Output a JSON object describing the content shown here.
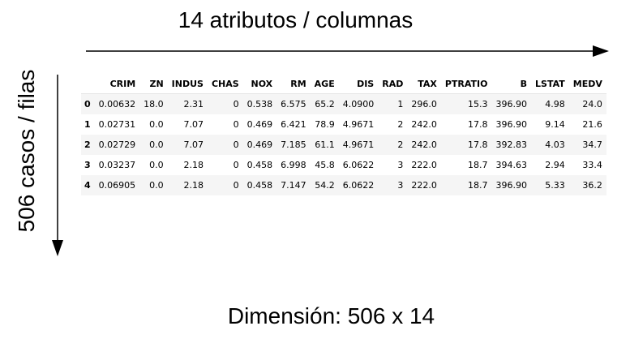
{
  "labels": {
    "columns": "14 atributos / columnas",
    "rows": "506 casos / filas",
    "dimension": "Dimensión: 506 x 14"
  },
  "table": {
    "columns": [
      "CRIM",
      "ZN",
      "INDUS",
      "CHAS",
      "NOX",
      "RM",
      "AGE",
      "DIS",
      "RAD",
      "TAX",
      "PTRATIO",
      "B",
      "LSTAT",
      "MEDV"
    ],
    "rows": [
      {
        "index": "0",
        "cells": [
          "0.00632",
          "18.0",
          "2.31",
          "0",
          "0.538",
          "6.575",
          "65.2",
          "4.0900",
          "1",
          "296.0",
          "15.3",
          "396.90",
          "4.98",
          "24.0"
        ]
      },
      {
        "index": "1",
        "cells": [
          "0.02731",
          "0.0",
          "7.07",
          "0",
          "0.469",
          "6.421",
          "78.9",
          "4.9671",
          "2",
          "242.0",
          "17.8",
          "396.90",
          "9.14",
          "21.6"
        ]
      },
      {
        "index": "2",
        "cells": [
          "0.02729",
          "0.0",
          "7.07",
          "0",
          "0.469",
          "7.185",
          "61.1",
          "4.9671",
          "2",
          "242.0",
          "17.8",
          "392.83",
          "4.03",
          "34.7"
        ]
      },
      {
        "index": "3",
        "cells": [
          "0.03237",
          "0.0",
          "2.18",
          "0",
          "0.458",
          "6.998",
          "45.8",
          "6.0622",
          "3",
          "222.0",
          "18.7",
          "394.63",
          "2.94",
          "33.4"
        ]
      },
      {
        "index": "4",
        "cells": [
          "0.06905",
          "0.0",
          "2.18",
          "0",
          "0.458",
          "7.147",
          "54.2",
          "6.0622",
          "3",
          "222.0",
          "18.7",
          "396.90",
          "5.33",
          "36.2"
        ]
      }
    ]
  }
}
